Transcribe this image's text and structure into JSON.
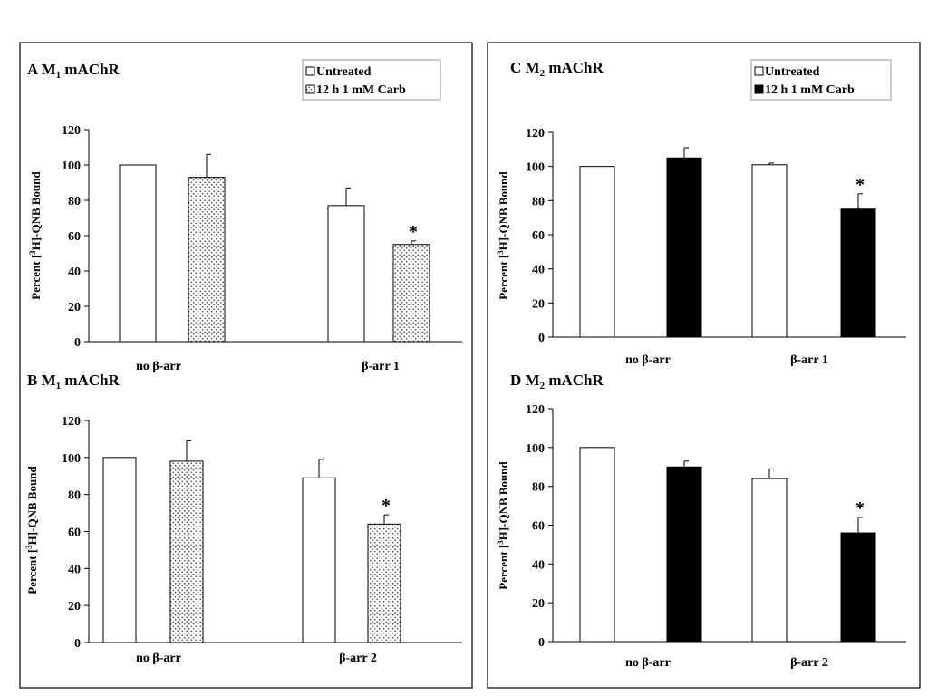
{
  "colors": {
    "frame": "#000000",
    "untreated": "#ffffff",
    "carb_solid": "#000000",
    "carb_dotted": "dotted-pattern"
  },
  "chart_data": [
    {
      "panel": "A",
      "type": "bar",
      "title": {
        "letter": "A",
        "prefix": "M",
        "sub": "1",
        "rest": "mAChR"
      },
      "ylabel": {
        "pre": "Percent  [",
        "sup": "3",
        "post": "H]-QNB Bound"
      },
      "ylim": [
        0,
        120
      ],
      "yticks": [
        "0",
        "20",
        "40",
        "60",
        "80",
        "100",
        "120"
      ],
      "categories": [
        "no β-arr",
        "β-arr 1"
      ],
      "legend": [
        "Untreated",
        "12 h 1 mM Carb"
      ],
      "fill": "dotted",
      "series": [
        {
          "name": "Untreated",
          "values": [
            100,
            77
          ],
          "errors": [
            0,
            10
          ]
        },
        {
          "name": "12 h 1 mM Carb",
          "values": [
            93,
            55
          ],
          "errors": [
            13,
            2
          ]
        }
      ],
      "annotations": [
        {
          "text": "*",
          "category": 1,
          "series": 1
        }
      ]
    },
    {
      "panel": "B",
      "type": "bar",
      "title": {
        "letter": "B",
        "prefix": "M",
        "sub": "1",
        "rest": "mAChR"
      },
      "ylabel": {
        "pre": "Percent  [",
        "sup": "3",
        "post": "H]-QNB Bound"
      },
      "ylim": [
        0,
        120
      ],
      "yticks": [
        "0",
        "20",
        "40",
        "60",
        "80",
        "100",
        "120"
      ],
      "categories": [
        "no β-arr",
        "β-arr 2"
      ],
      "legend": [],
      "fill": "dotted",
      "series": [
        {
          "name": "Untreated",
          "values": [
            100,
            89
          ],
          "errors": [
            0,
            10
          ]
        },
        {
          "name": "12 h 1 mM Carb",
          "values": [
            98,
            64
          ],
          "errors": [
            11,
            5
          ]
        }
      ],
      "annotations": [
        {
          "text": "*",
          "category": 1,
          "series": 1
        }
      ]
    },
    {
      "panel": "C",
      "type": "bar",
      "title": {
        "letter": "C",
        "prefix": "M",
        "sub": "2",
        "rest": "mAChR"
      },
      "ylabel": {
        "pre": "Percent  [",
        "sup": "3",
        "post": "H]-QNB Bound"
      },
      "ylim": [
        0,
        120
      ],
      "yticks": [
        "0",
        "20",
        "40",
        "60",
        "80",
        "100",
        "120"
      ],
      "categories": [
        "no β-arr",
        "β-arr 1"
      ],
      "legend": [
        "Untreated",
        "12 h 1 mM Carb"
      ],
      "fill": "solid",
      "series": [
        {
          "name": "Untreated",
          "values": [
            100,
            101
          ],
          "errors": [
            0,
            1
          ]
        },
        {
          "name": "12 h 1 mM Carb",
          "values": [
            105,
            75
          ],
          "errors": [
            6,
            9
          ]
        }
      ],
      "annotations": [
        {
          "text": "*",
          "category": 1,
          "series": 1
        }
      ]
    },
    {
      "panel": "D",
      "type": "bar",
      "title": {
        "letter": "D",
        "prefix": "M",
        "sub": "2",
        "rest": "mAChR"
      },
      "ylabel": {
        "pre": "Percent  [",
        "sup": "3",
        "post": "H]-QNB Bound"
      },
      "ylim": [
        0,
        120
      ],
      "yticks": [
        "0",
        "20",
        "40",
        "60",
        "80",
        "100",
        "120"
      ],
      "categories": [
        "no β-arr",
        "β-arr 2"
      ],
      "legend": [],
      "fill": "solid",
      "series": [
        {
          "name": "Untreated",
          "values": [
            100,
            84
          ],
          "errors": [
            0,
            5
          ]
        },
        {
          "name": "12 h 1 mM Carb",
          "values": [
            90,
            56
          ],
          "errors": [
            3,
            8
          ]
        }
      ],
      "annotations": [
        {
          "text": "*",
          "category": 1,
          "series": 1
        }
      ]
    }
  ]
}
